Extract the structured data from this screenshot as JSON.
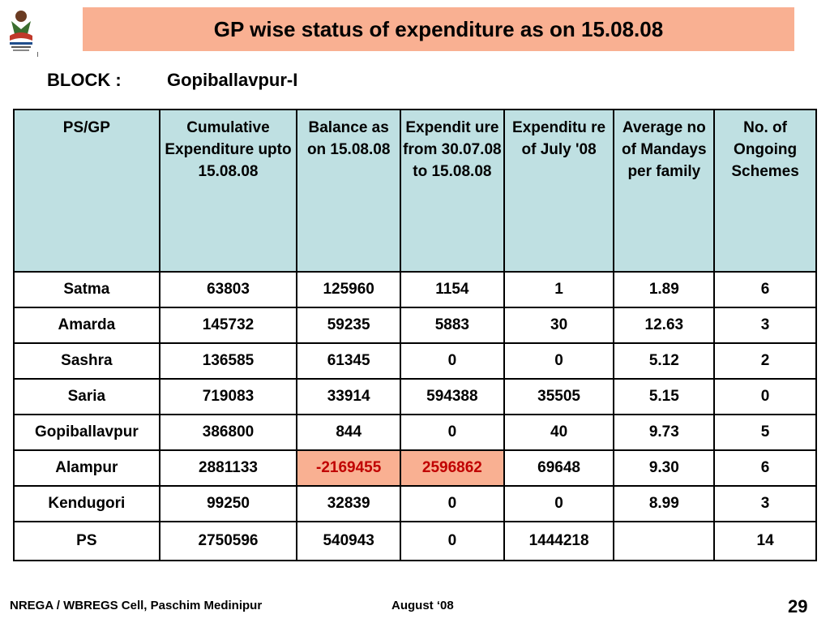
{
  "title": "GP wise status of expenditure as on 15.08.08",
  "block": {
    "label": "BLOCK :",
    "value": "Gopiballavpur-I"
  },
  "table": {
    "headers": [
      "PS/GP",
      "Cumulative Expenditure upto 15.08.08",
      "Balance as on 15.08.08",
      "Expendit ure from 30.07.08 to 15.08.08",
      "Expenditu re of  July '08",
      "Average no of Mandays per family",
      "No. of Ongoing Schemes"
    ],
    "rows": [
      [
        "Satma",
        "63803",
        "125960",
        "1154",
        "1",
        "1.89",
        "6"
      ],
      [
        "Amarda",
        "145732",
        "59235",
        "5883",
        "30",
        "12.63",
        "3"
      ],
      [
        "Sashra",
        "136585",
        "61345",
        "0",
        "0",
        "5.12",
        "2"
      ],
      [
        "Saria",
        "719083",
        "33914",
        "594388",
        "35505",
        "5.15",
        "0"
      ],
      [
        "Gopiballavpur",
        "386800",
        "844",
        "0",
        "40",
        "9.73",
        "5"
      ],
      [
        "Alampur",
        "2881133",
        "-2169455",
        "2596862",
        "69648",
        "9.30",
        "6"
      ],
      [
        "Kendugori",
        "99250",
        "32839",
        "0",
        "0",
        "8.99",
        "3"
      ],
      [
        "PS",
        "2750596",
        "540943",
        "0",
        "1444218",
        "",
        "14"
      ]
    ]
  },
  "highlight_colors": {
    "title_bg": "#f9b092",
    "header_bg": "#bfe0e2",
    "alert_text": "#c00000"
  },
  "footer": {
    "left": "NREGA / WBREGS Cell, Paschim Medinipur",
    "middle": "August ‘08",
    "page": "29"
  },
  "logo_icon": "nrega-logo-icon"
}
